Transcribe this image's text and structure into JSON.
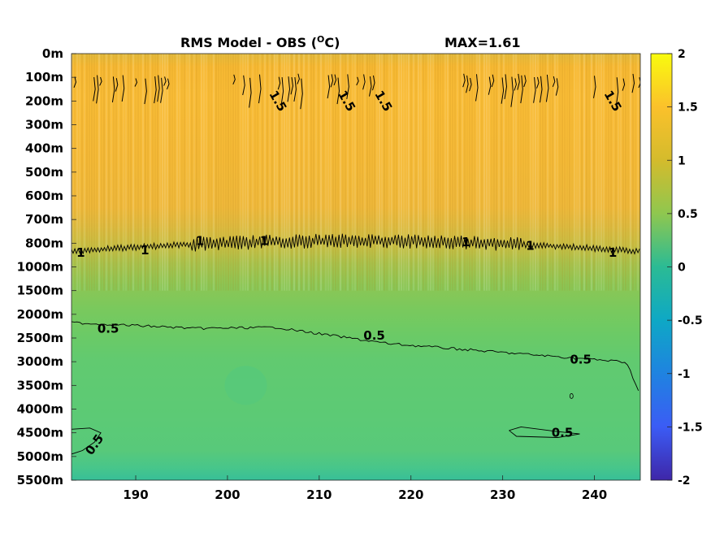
{
  "chart_data": {
    "type": "heatmap",
    "title": "RMS Model - OBS (",
    "title_sup": "O",
    "title_unit": "C)",
    "annotation": "MAX=1.61",
    "xlabel": "",
    "ylabel": "",
    "xlim": [
      183,
      245
    ],
    "x_ticks": [
      190,
      200,
      210,
      220,
      230,
      240
    ],
    "y_tick_labels": [
      "0m",
      "100m",
      "200m",
      "300m",
      "400m",
      "500m",
      "600m",
      "700m",
      "800m",
      "1000m",
      "1500m",
      "2000m",
      "2500m",
      "3000m",
      "3500m",
      "4000m",
      "4500m",
      "5000m",
      "5500m"
    ],
    "colorbar": {
      "range": [
        -2,
        2
      ],
      "ticks": [
        "2",
        "1.5",
        "1",
        "0.5",
        "0",
        "-0.5",
        "-1",
        "-1.5",
        "-2"
      ],
      "colormap": "parula"
    },
    "contour_levels": [
      0.5,
      1,
      1.5
    ],
    "contour_labels": [
      {
        "text": "1.5",
        "x": 205.5,
        "level_index": 2
      },
      {
        "text": "1.5",
        "x": 213,
        "level_index": 2
      },
      {
        "text": "1.5",
        "x": 217,
        "level_index": 2
      },
      {
        "text": "1.5",
        "x": 242,
        "level_index": 2
      },
      {
        "text": "1",
        "x": 184,
        "level_index": 8.4
      },
      {
        "text": "1",
        "x": 191,
        "level_index": 8.3
      },
      {
        "text": "1",
        "x": 197,
        "level_index": 7.9
      },
      {
        "text": "1",
        "x": 204,
        "level_index": 7.9
      },
      {
        "text": "1",
        "x": 226,
        "level_index": 7.95
      },
      {
        "text": "1",
        "x": 233,
        "level_index": 8.1
      },
      {
        "text": "1",
        "x": 242,
        "level_index": 8.4
      },
      {
        "text": "0.5",
        "x": 187,
        "level_index": 11.6
      },
      {
        "text": "0.5",
        "x": 216,
        "level_index": 11.9
      },
      {
        "text": "0.5",
        "x": 238.5,
        "level_index": 12.9
      },
      {
        "text": "0.5",
        "x": 236.5,
        "level_index": 16.0
      },
      {
        "text": "0.5",
        "x": 185.5,
        "level_index": 16.5
      }
    ],
    "depth_profile_rms": [
      {
        "depth": "0m",
        "rms": 1.3
      },
      {
        "depth": "100m",
        "rms": 1.5
      },
      {
        "depth": "200m",
        "rms": 1.5
      },
      {
        "depth": "300m",
        "rms": 1.45
      },
      {
        "depth": "400m",
        "rms": 1.4
      },
      {
        "depth": "500m",
        "rms": 1.35
      },
      {
        "depth": "600m",
        "rms": 1.3
      },
      {
        "depth": "700m",
        "rms": 1.2
      },
      {
        "depth": "800m",
        "rms": 1.05
      },
      {
        "depth": "1000m",
        "rms": 0.85
      },
      {
        "depth": "1500m",
        "rms": 0.7
      },
      {
        "depth": "2000m",
        "rms": 0.6
      },
      {
        "depth": "2500m",
        "rms": 0.5
      },
      {
        "depth": "3000m",
        "rms": 0.45
      },
      {
        "depth": "3500m",
        "rms": 0.45
      },
      {
        "depth": "4000m",
        "rms": 0.45
      },
      {
        "depth": "4500m",
        "rms": 0.45
      },
      {
        "depth": "5000m",
        "rms": 0.4
      },
      {
        "depth": "5500m",
        "rms": 0.3
      }
    ]
  }
}
